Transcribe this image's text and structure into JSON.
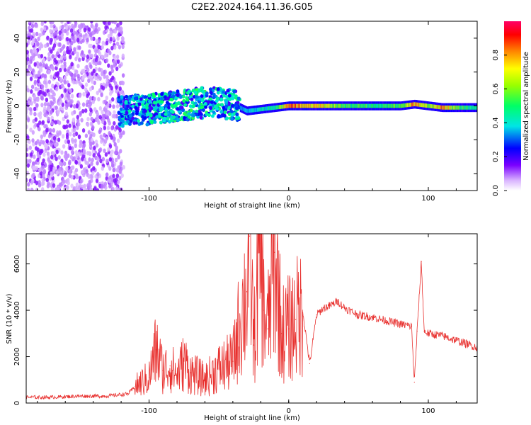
{
  "title": "C2E2.2024.164.11.36.G05",
  "chart_data": [
    {
      "type": "heatmap",
      "xlabel": "Height of straight line (km)",
      "ylabel": "Frequency (Hz)",
      "xlim": [
        -188,
        135
      ],
      "ylim": [
        -50,
        50
      ],
      "x_ticks": [
        -100,
        0,
        100
      ],
      "x_tick_labels": [
        "-100",
        "0",
        "100"
      ],
      "y_ticks": [
        -40,
        -20,
        0,
        20,
        40
      ],
      "y_tick_labels": [
        "-40",
        "-20",
        "0",
        "20",
        "40"
      ],
      "colorbar": {
        "label": "Normalized spectral amplitude",
        "range": [
          0,
          1
        ],
        "ticks": [
          0.0,
          0.2,
          0.4,
          0.6,
          0.8
        ],
        "tick_labels": [
          "0.0",
          "0.2",
          "0.4",
          "0.6",
          "0.8"
        ]
      },
      "regions": [
        {
          "x_from": -188,
          "x_to": -118,
          "f_from": -50,
          "f_to": 50,
          "amplitude": 0.12,
          "pattern": "scattered noise"
        },
        {
          "x_from": -122,
          "x_to": -35,
          "f_from": -8,
          "f_to": 10,
          "amplitude": 0.35,
          "pattern": "broad band"
        },
        {
          "x_from": -35,
          "x_to": 135,
          "f_from": -4,
          "f_to": 3,
          "amplitude": 0.55,
          "pattern": "narrow band"
        }
      ],
      "ridge": {
        "x": [
          -120,
          -100,
          -80,
          -60,
          -40,
          -30,
          -20,
          -10,
          0,
          10,
          20,
          40,
          60,
          80,
          90,
          100,
          110,
          120,
          135
        ],
        "frequency": [
          -3,
          -2,
          0,
          2,
          1,
          -3,
          -2,
          -1,
          0,
          0,
          0,
          0,
          0,
          0,
          1,
          0,
          -1,
          -1,
          -1
        ],
        "amplitude": [
          0.3,
          0.35,
          0.4,
          0.4,
          0.35,
          0.4,
          0.45,
          0.5,
          0.95,
          0.85,
          0.8,
          0.6,
          0.55,
          0.6,
          0.9,
          0.65,
          0.9,
          0.6,
          0.5
        ]
      }
    },
    {
      "type": "line",
      "xlabel": "Height of straight line (km)",
      "ylabel": "SNR (10 * v/v)",
      "xlim": [
        -188,
        135
      ],
      "ylim": [
        0,
        7300
      ],
      "x_ticks": [
        -100,
        0,
        100
      ],
      "x_tick_labels": [
        "-100",
        "0",
        "100"
      ],
      "y_ticks": [
        0,
        2000,
        4000,
        6000
      ],
      "y_tick_labels": [
        "0",
        "2000",
        "4000",
        "6000"
      ],
      "color": "#e8302e",
      "series": [
        {
          "x": [
            -188,
            -170,
            -150,
            -130,
            -115,
            -110,
            -100,
            -95,
            -90,
            -85,
            -80,
            -75,
            -70,
            -60,
            -50,
            -40,
            -35,
            -30,
            -28,
            -25,
            -20,
            -18,
            -15,
            -10,
            -5,
            0,
            5,
            10,
            15,
            20,
            25,
            30,
            35,
            40,
            50,
            60,
            70,
            80,
            85,
            88,
            90,
            92,
            95,
            97,
            100,
            110,
            120,
            130,
            135
          ],
          "y": [
            250,
            250,
            300,
            300,
            400,
            700,
            1100,
            2300,
            1400,
            1600,
            1200,
            1800,
            1300,
            1000,
            1500,
            1800,
            3500,
            4800,
            7200,
            2500,
            6900,
            4000,
            3200,
            6500,
            3000,
            3200,
            3600,
            4000,
            1700,
            3800,
            4100,
            4200,
            4400,
            4100,
            3800,
            3700,
            3550,
            3400,
            3350,
            3300,
            900,
            3100,
            6100,
            3100,
            3000,
            2900,
            2700,
            2500,
            2400
          ]
        }
      ]
    }
  ]
}
